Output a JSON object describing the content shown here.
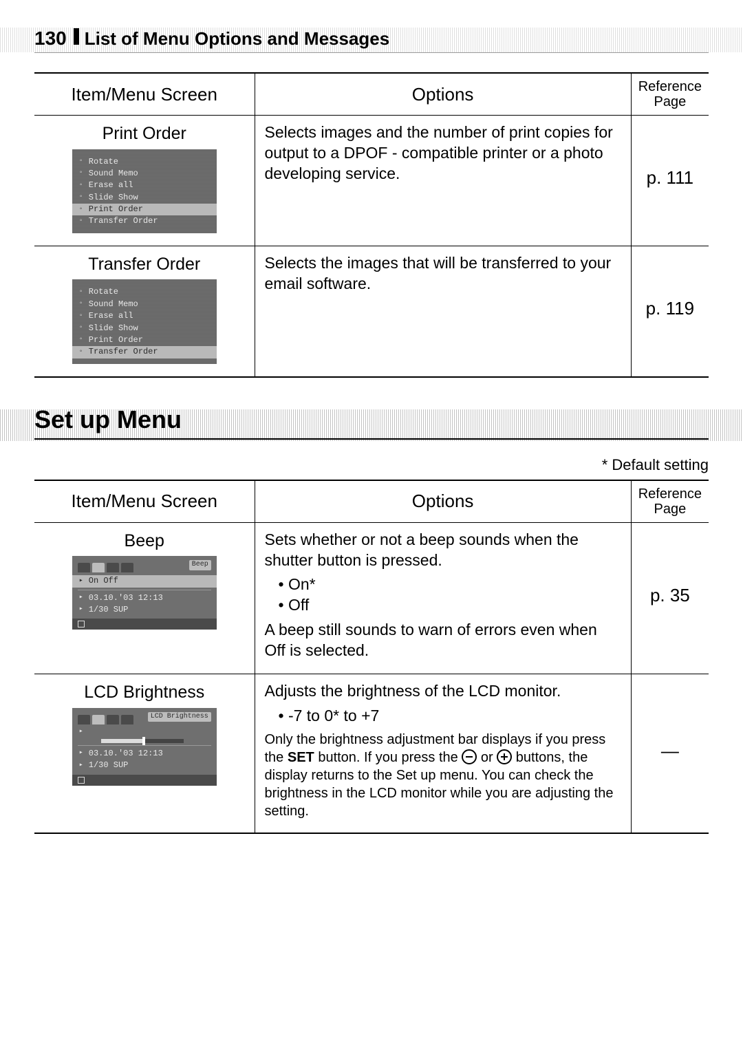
{
  "page": {
    "number": "130",
    "title": "List of Menu Options and Messages"
  },
  "table1": {
    "headers": {
      "item": "Item/Menu Screen",
      "options": "Options",
      "ref": "Reference Page"
    },
    "rows": [
      {
        "item_title": "Print Order",
        "lcd": {
          "style": "halftone",
          "items": [
            "Rotate",
            "Sound Memo",
            "Erase all",
            "Slide Show",
            "Print Order",
            "Transfer Order"
          ],
          "selected_index": 4
        },
        "options_text": "Selects images and the number of print copies for output to a DPOF - compatible printer or a photo developing service.",
        "ref": "p. 111"
      },
      {
        "item_title": "Transfer Order",
        "lcd": {
          "style": "halftone",
          "items": [
            "Rotate",
            "Sound Memo",
            "Erase all",
            "Slide Show",
            "Print Order",
            "Transfer Order"
          ],
          "selected_index": 5
        },
        "options_text": "Selects the images that will be transferred to your email software.",
        "ref": "p. 119"
      }
    ]
  },
  "section2": {
    "heading": "Set up Menu",
    "default_note": "* Default setting"
  },
  "table2": {
    "headers": {
      "item": "Item/Menu Screen",
      "options": "Options",
      "ref": "Reference Page"
    },
    "rows": [
      {
        "item_title": "Beep",
        "lcd": {
          "style": "setup",
          "title_chip": "Beep",
          "tabs_active": 1,
          "rows": [
            {
              "label": "",
              "value": "On   Off",
              "sel": true
            },
            {
              "hr": true
            },
            {
              "label": "",
              "value": "03.10.'03 12:13"
            },
            {
              "label": "",
              "value": "1/30 SUP"
            }
          ],
          "footer": true
        },
        "options_text": "Sets whether or not a beep sounds when the shutter button is pressed.",
        "bullets": [
          "On*",
          "Off"
        ],
        "options_tail": "A beep still sounds to warn of errors even when Off is selected.",
        "ref": "p. 35"
      },
      {
        "item_title": "LCD Brightness",
        "lcd": {
          "style": "setup",
          "title_chip": "LCD Brightness",
          "tabs_active": 1,
          "rows": [
            {
              "label": "",
              "value": "",
              "sel": false
            },
            {
              "slider": true
            },
            {
              "hr": true
            },
            {
              "label": "",
              "value": "03.10.'03 12:13"
            },
            {
              "label": "",
              "value": "1/30 SUP"
            }
          ],
          "footer": true
        },
        "options_text": "Adjusts the brightness of the LCD monitor.",
        "bullets": [
          "-7 to 0* to +7"
        ],
        "options_tail_small_pre": "Only the brightness adjustment bar displays if you press the ",
        "bold_word": "SET",
        "options_tail_small_mid": " button. If you press the ",
        "options_tail_small_post": " buttons, the display returns to the Set up menu. You can check the brightness in the LCD monitor while you are adjusting the setting.",
        "ref": "—"
      }
    ]
  },
  "colors": {
    "text": "#000000",
    "bg": "#ffffff",
    "lcd_bg": "#6f6f6f",
    "lcd_sel": "#b9b9b9",
    "hatch": "#bfbfbf"
  }
}
